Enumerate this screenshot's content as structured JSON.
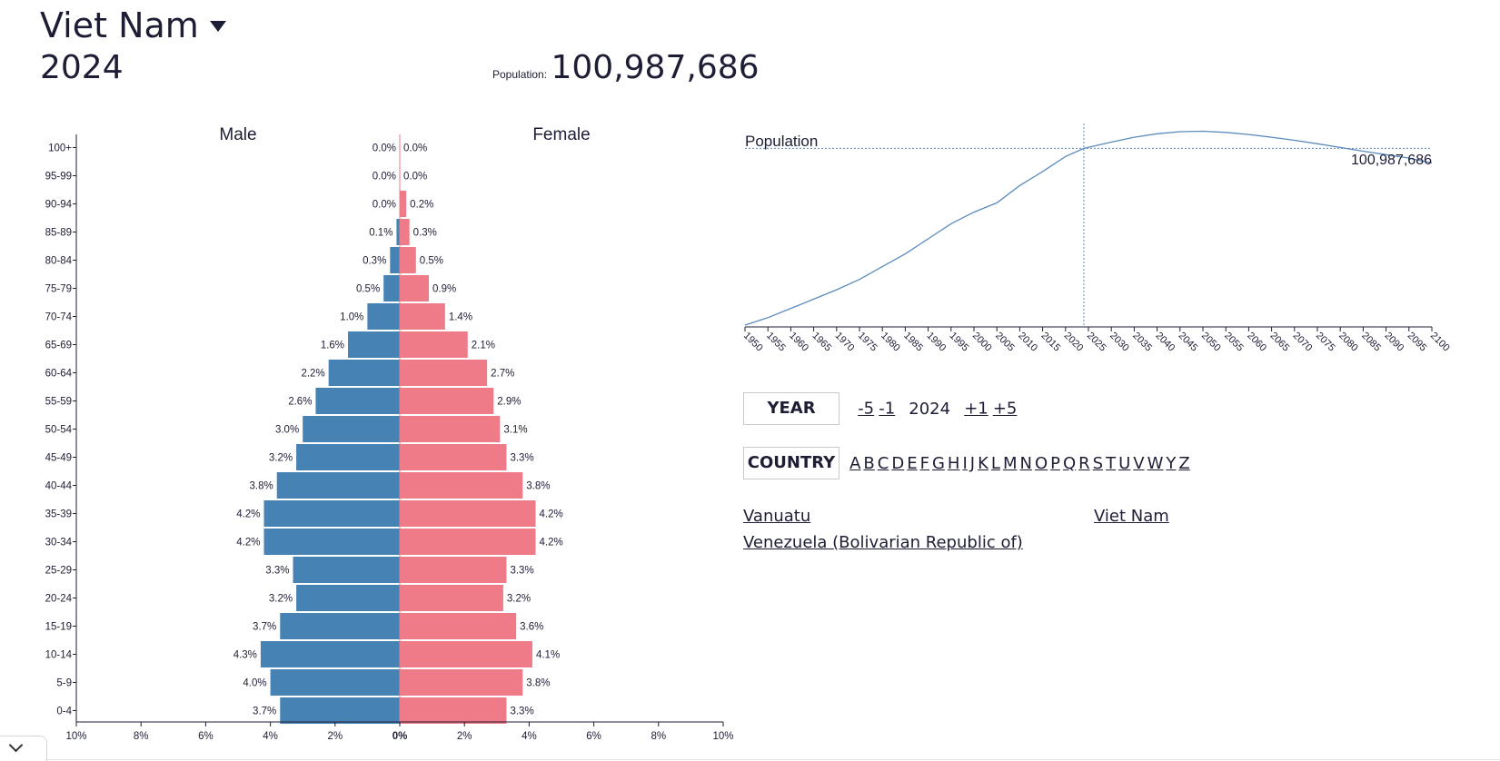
{
  "header": {
    "country": "Viet Nam",
    "year": "2024",
    "population_label": "Population:",
    "population_value": "100,987,686"
  },
  "colors": {
    "male": "#4682b4",
    "female": "#f07b88",
    "line": "#5b8bbd",
    "text": "#1d1d35"
  },
  "chart_data": [
    {
      "type": "bar",
      "orientation": "horizontal-pyramid",
      "labels": {
        "left": "Male",
        "right": "Female"
      },
      "categories": [
        "100+",
        "95-99",
        "90-94",
        "85-89",
        "80-84",
        "75-79",
        "70-74",
        "65-69",
        "60-64",
        "55-59",
        "50-54",
        "45-49",
        "40-44",
        "35-39",
        "30-34",
        "25-29",
        "20-24",
        "15-19",
        "10-14",
        "5-9",
        "0-4"
      ],
      "series": [
        {
          "name": "Male",
          "values": [
            0.0,
            0.0,
            0.0,
            0.1,
            0.3,
            0.5,
            1.0,
            1.6,
            2.2,
            2.6,
            3.0,
            3.2,
            3.8,
            4.2,
            4.2,
            3.3,
            3.2,
            3.7,
            4.3,
            4.0,
            3.7
          ]
        },
        {
          "name": "Female",
          "values": [
            0.0,
            0.0,
            0.2,
            0.3,
            0.5,
            0.9,
            1.4,
            2.1,
            2.7,
            2.9,
            3.1,
            3.3,
            3.8,
            4.2,
            4.2,
            3.3,
            3.2,
            3.6,
            4.1,
            3.8,
            3.3
          ]
        }
      ],
      "value_labels": {
        "male": [
          "0.0%",
          "0.0%",
          "0.0%",
          "0.1%",
          "0.3%",
          "0.5%",
          "1.0%",
          "1.6%",
          "2.2%",
          "2.6%",
          "3.0%",
          "3.2%",
          "3.8%",
          "4.2%",
          "4.2%",
          "3.3%",
          "3.2%",
          "3.7%",
          "4.3%",
          "4.0%",
          "3.7%"
        ],
        "female": [
          "0.0%",
          "0.0%",
          "0.2%",
          "0.3%",
          "0.5%",
          "0.9%",
          "1.4%",
          "2.1%",
          "2.7%",
          "2.9%",
          "3.1%",
          "3.3%",
          "3.8%",
          "4.2%",
          "4.2%",
          "3.3%",
          "3.2%",
          "3.6%",
          "4.1%",
          "3.8%",
          "3.3%"
        ]
      },
      "x_ticks": [
        -10,
        -8,
        -6,
        -4,
        -2,
        0,
        2,
        4,
        6,
        8,
        10
      ],
      "x_tick_labels": [
        "10%",
        "8%",
        "6%",
        "4%",
        "2%",
        "0%",
        "2%",
        "4%",
        "6%",
        "8%",
        "10%"
      ],
      "xlim": [
        -10,
        10
      ]
    },
    {
      "type": "line",
      "title": "Population",
      "x": [
        1950,
        1955,
        1960,
        1965,
        1970,
        1975,
        1980,
        1985,
        1990,
        1995,
        2000,
        2005,
        2010,
        2015,
        2020,
        2024,
        2030,
        2035,
        2040,
        2045,
        2050,
        2055,
        2060,
        2065,
        2070,
        2075,
        2080,
        2085,
        2090,
        2095,
        2100
      ],
      "y": [
        24.8,
        28.0,
        32.0,
        36.0,
        40.0,
        44.5,
        50.0,
        55.5,
        62.0,
        68.5,
        73.5,
        77.5,
        85.0,
        91.0,
        97.5,
        100.99,
        103.7,
        105.8,
        107.3,
        108.2,
        108.4,
        107.9,
        107.0,
        105.8,
        104.5,
        103.0,
        101.4,
        99.8,
        98.3,
        96.8,
        94.7
      ],
      "xlim": [
        1950,
        2100
      ],
      "ylim": [
        24.0,
        108.6
      ],
      "x_tick_labels": [
        "1950",
        "1955",
        "1960",
        "1965",
        "1970",
        "1975",
        "1980",
        "1985",
        "1990",
        "1995",
        "2000",
        "2005",
        "2010",
        "2015",
        "2020",
        "2025",
        "2030",
        "2035",
        "2040",
        "2045",
        "2050",
        "2055",
        "2060",
        "2065",
        "2070",
        "2075",
        "2080",
        "2085",
        "2090",
        "2095",
        "2100"
      ],
      "marker_year": 2024,
      "marker_label": "100,987,686"
    }
  ],
  "controls": {
    "year_label": "YEAR",
    "year_links": [
      "-5",
      "-1",
      "+1",
      "+5"
    ],
    "year_value": "2024",
    "country_label": "COUNTRY",
    "letters": [
      "A",
      "B",
      "C",
      "D",
      "E",
      "F",
      "G",
      "H",
      "I",
      "J",
      "K",
      "L",
      "M",
      "N",
      "O",
      "P",
      "Q",
      "R",
      "S",
      "T",
      "U",
      "V",
      "W",
      "Y",
      "Z"
    ]
  },
  "countries": [
    "Vanuatu",
    "Viet Nam",
    "Venezuela (Bolivarian Republic of)"
  ],
  "bottom_toggle_icon": "chevron-down-icon"
}
